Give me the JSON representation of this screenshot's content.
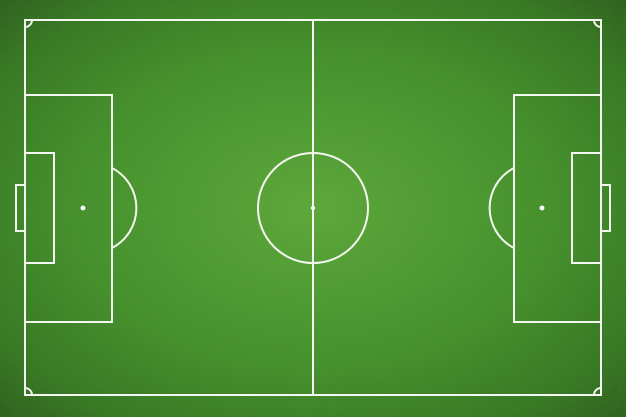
{
  "scene": {
    "subject": "football-pitch",
    "view": "top-down",
    "surface": "artificial-grass"
  },
  "colors": {
    "grass_light": "#5fae3a",
    "grass_mid": "#3f8f27",
    "grass_dark": "#2a6f1a",
    "vignette": "#1d4f10",
    "line": "#f4f7ef"
  }
}
